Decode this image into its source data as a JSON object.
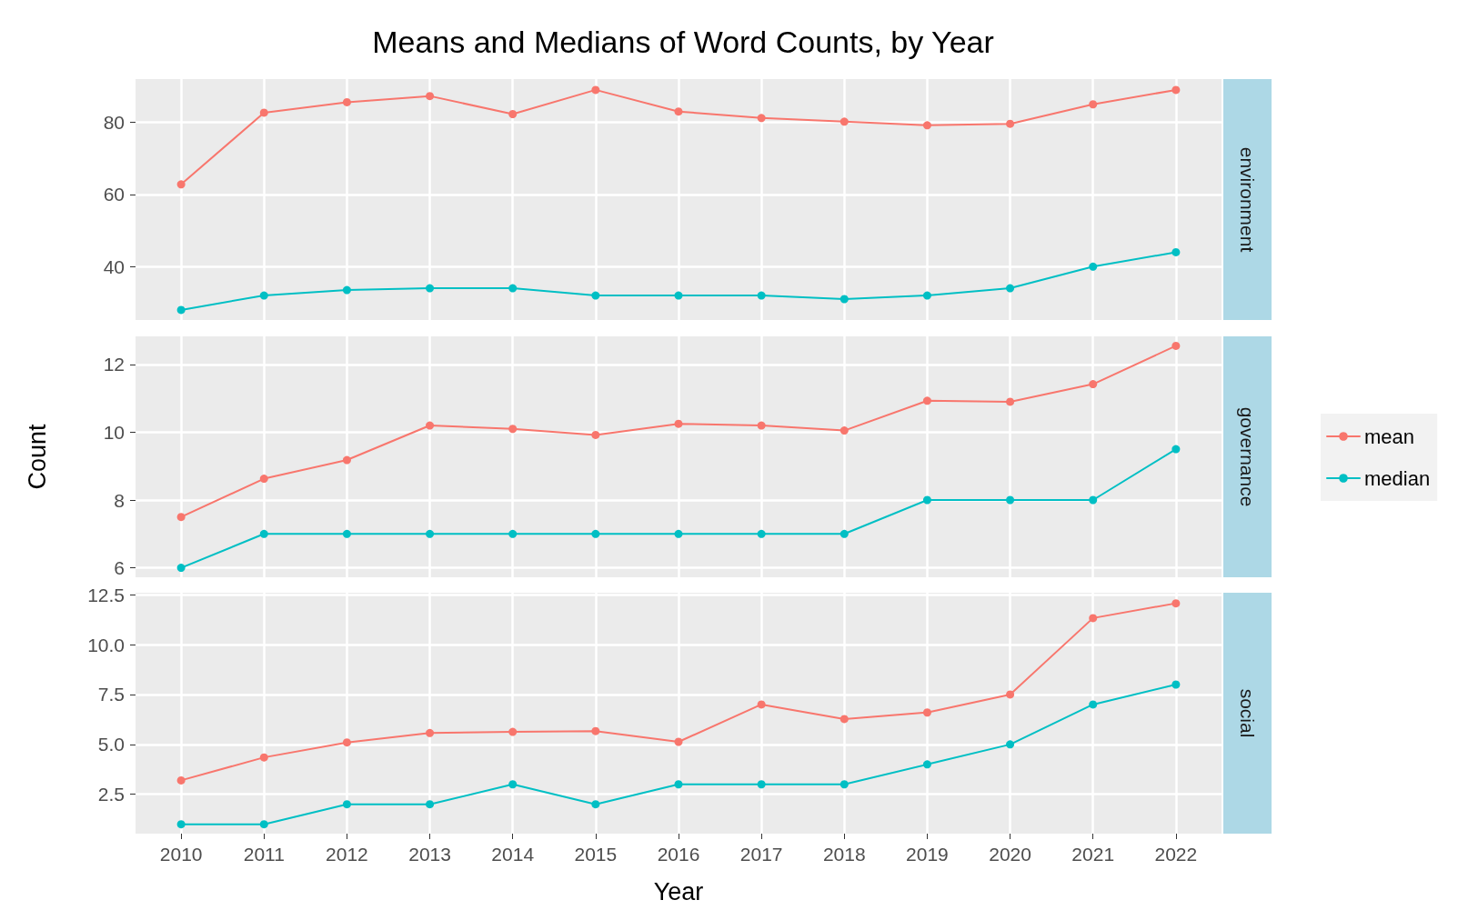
{
  "chart_data": [
    {
      "type": "line",
      "title": "Means and Medians of Word Counts, by Year",
      "y2label": "environment",
      "categories": [
        "2010",
        "2011",
        "2012",
        "2013",
        "2014",
        "2015",
        "2016",
        "2017",
        "2018",
        "2019",
        "2020",
        "2021",
        "2022"
      ],
      "ylim": [
        25.2,
        92
      ],
      "yticks": [
        40,
        60,
        80
      ],
      "tick_labels": "y",
      "grid": true,
      "marker": "circle",
      "line_style": "solid",
      "series": [
        {
          "color": "#f8766d",
          "values": [
            62.8,
            82.7,
            85.6,
            87.3,
            82.3,
            89,
            83,
            81.2,
            80.2,
            79.2,
            79.6,
            85,
            89
          ]
        },
        {
          "color": "#00bfc4",
          "values": [
            28,
            32,
            33.5,
            34,
            34,
            32,
            32,
            32,
            31,
            32,
            34,
            40,
            44
          ]
        }
      ]
    },
    {
      "type": "line",
      "y2label": "governance",
      "ylabel": "Count",
      "legend": "right",
      "categories": [
        "2010",
        "2011",
        "2012",
        "2013",
        "2014",
        "2015",
        "2016",
        "2017",
        "2018",
        "2019",
        "2020",
        "2021",
        "2022"
      ],
      "ylim": [
        5.72,
        12.83
      ],
      "yticks": [
        6,
        8,
        10,
        12
      ],
      "tick_labels": "y",
      "grid": true,
      "marker": "circle",
      "line_style": "solid",
      "series": [
        {
          "name": "mean",
          "color": "#f8766d",
          "values": [
            7.5,
            8.63,
            9.18,
            10.2,
            10.1,
            9.92,
            10.25,
            10.2,
            10.05,
            10.93,
            10.9,
            11.42,
            12.55
          ]
        },
        {
          "name": "median",
          "color": "#00bfc4",
          "values": [
            6,
            7,
            7,
            7,
            7,
            7,
            7,
            7,
            7,
            8,
            8,
            8,
            9.5
          ]
        }
      ]
    },
    {
      "type": "line",
      "y2label": "social",
      "xlabel": "Year",
      "categories": [
        "2010",
        "2011",
        "2012",
        "2013",
        "2014",
        "2015",
        "2016",
        "2017",
        "2018",
        "2019",
        "2020",
        "2021",
        "2022"
      ],
      "ylim": [
        0.53,
        12.6
      ],
      "yticks": [
        2.5,
        {
          "value": 5,
          "label": "5.0"
        },
        7.5,
        {
          "value": 10,
          "label": "10.0"
        },
        12.5
      ],
      "grid": true,
      "marker": "circle",
      "line_style": "solid",
      "series": [
        {
          "color": "#f8766d",
          "values": [
            3.2,
            4.35,
            5.1,
            5.57,
            5.63,
            5.67,
            5.13,
            7,
            6.27,
            6.6,
            7.5,
            11.33,
            12.07
          ]
        },
        {
          "color": "#00bfc4",
          "values": [
            1,
            1,
            2,
            2,
            3,
            2,
            3,
            3,
            3,
            4,
            5,
            7,
            8
          ]
        }
      ]
    }
  ]
}
